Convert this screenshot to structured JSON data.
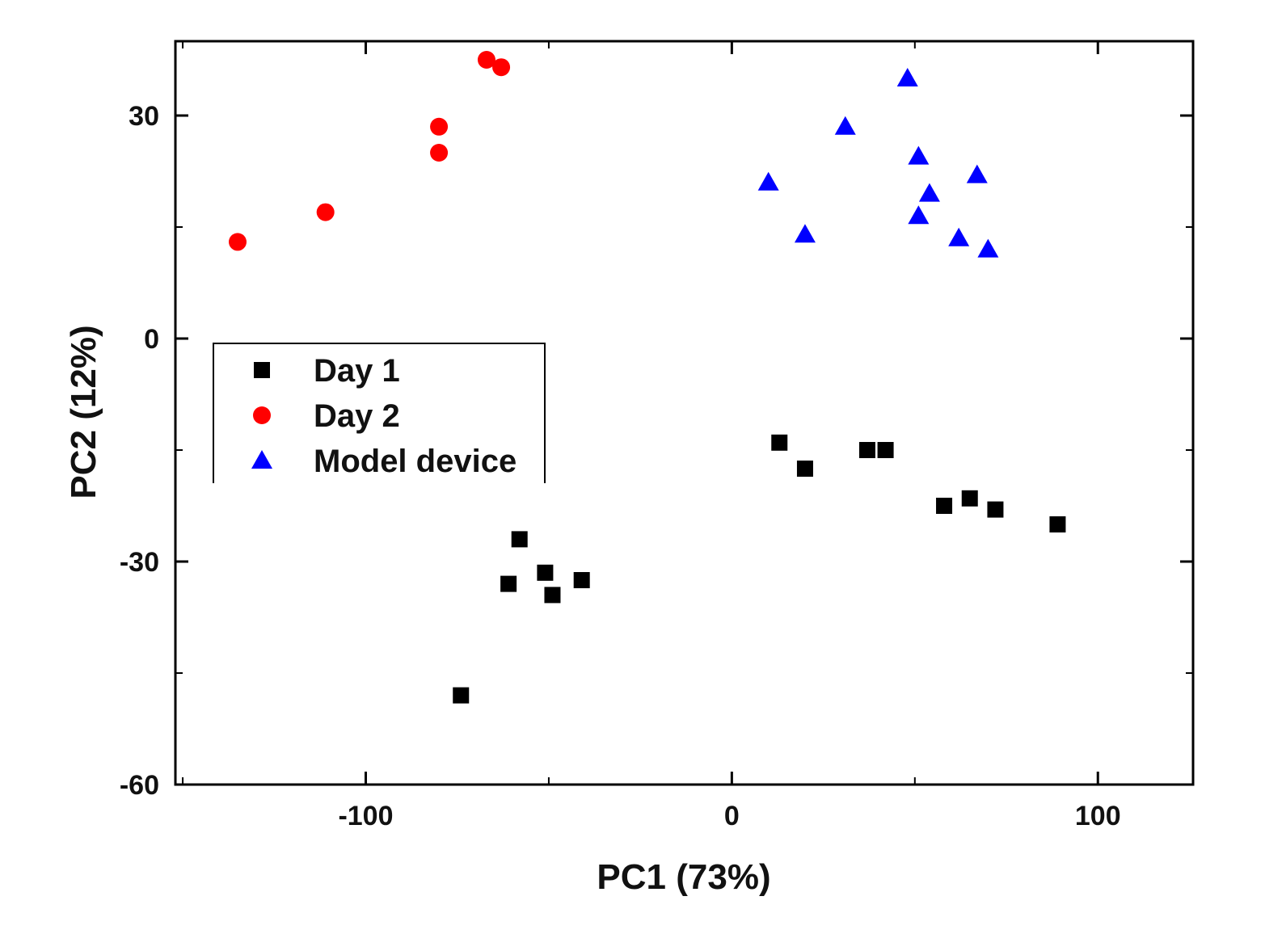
{
  "chart_data": {
    "type": "scatter",
    "title": "",
    "xlabel": "PC1 (73%)",
    "ylabel": "PC2 (12%)",
    "xlim": [
      -152,
      126
    ],
    "ylim": [
      -60,
      40
    ],
    "xticks": [
      -100,
      0,
      100
    ],
    "yticks": [
      -60,
      -30,
      0,
      30
    ],
    "xtick_labels": [
      "-100",
      "0",
      "100"
    ],
    "ytick_labels": [
      "-60",
      "-30",
      "0",
      "30"
    ],
    "grid": false,
    "legend_position": "middle-left",
    "series": [
      {
        "name": "Day 1",
        "marker": "square",
        "color": "#000000",
        "points": [
          [
            13,
            -14
          ],
          [
            20,
            -17.5
          ],
          [
            37,
            -15
          ],
          [
            42,
            -15
          ],
          [
            58,
            -22.5
          ],
          [
            65,
            -21.5
          ],
          [
            72,
            -23
          ],
          [
            89,
            -25
          ],
          [
            -58,
            -27
          ],
          [
            -61,
            -33
          ],
          [
            -51,
            -31.5
          ],
          [
            -49,
            -34.5
          ],
          [
            -41,
            -32.5
          ],
          [
            -74,
            -48
          ]
        ]
      },
      {
        "name": "Day 2",
        "marker": "circle",
        "color": "#ff0000",
        "points": [
          [
            -67,
            37.5
          ],
          [
            -63,
            36.5
          ],
          [
            -80,
            28.5
          ],
          [
            -80,
            25
          ],
          [
            -111,
            17
          ],
          [
            -135,
            13
          ]
        ]
      },
      {
        "name": "Model device",
        "marker": "triangle",
        "color": "#0000ff",
        "points": [
          [
            48,
            35
          ],
          [
            31,
            28.5
          ],
          [
            51,
            24.5
          ],
          [
            67,
            22
          ],
          [
            10,
            21
          ],
          [
            54,
            19.5
          ],
          [
            51,
            16.5
          ],
          [
            20,
            14
          ],
          [
            62,
            13.5
          ],
          [
            70,
            12
          ]
        ]
      }
    ]
  }
}
